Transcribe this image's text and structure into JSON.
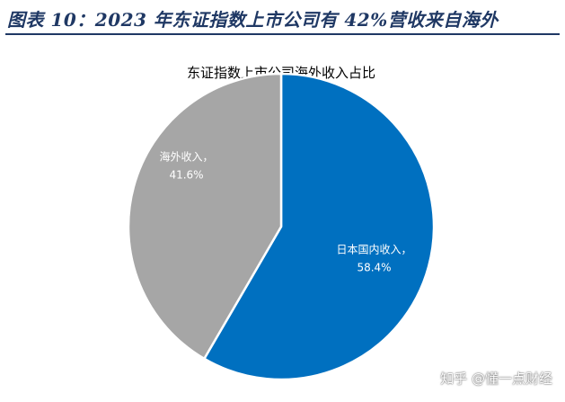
{
  "figure": {
    "title": "图表 10：2023 年东证指数上市公司有 42%营收来自海外",
    "watermark": "知乎 @懂一点财经"
  },
  "colors": {
    "title": "#1f3864",
    "domestic": "#0070c0",
    "overseas": "#a6a6a6",
    "label_on_slice": "#ffffff"
  },
  "chart_data": {
    "type": "pie",
    "title": "东证指数上市公司海外收入占比",
    "start": "12 o'clock, clockwise",
    "slices": [
      {
        "label": "日本国内收入",
        "value": 58.4,
        "value_text": "58.4%",
        "color": "#0070c0"
      },
      {
        "label": "海外收入",
        "value": 41.6,
        "value_text": "41.6%",
        "color": "#a6a6a6"
      }
    ]
  }
}
